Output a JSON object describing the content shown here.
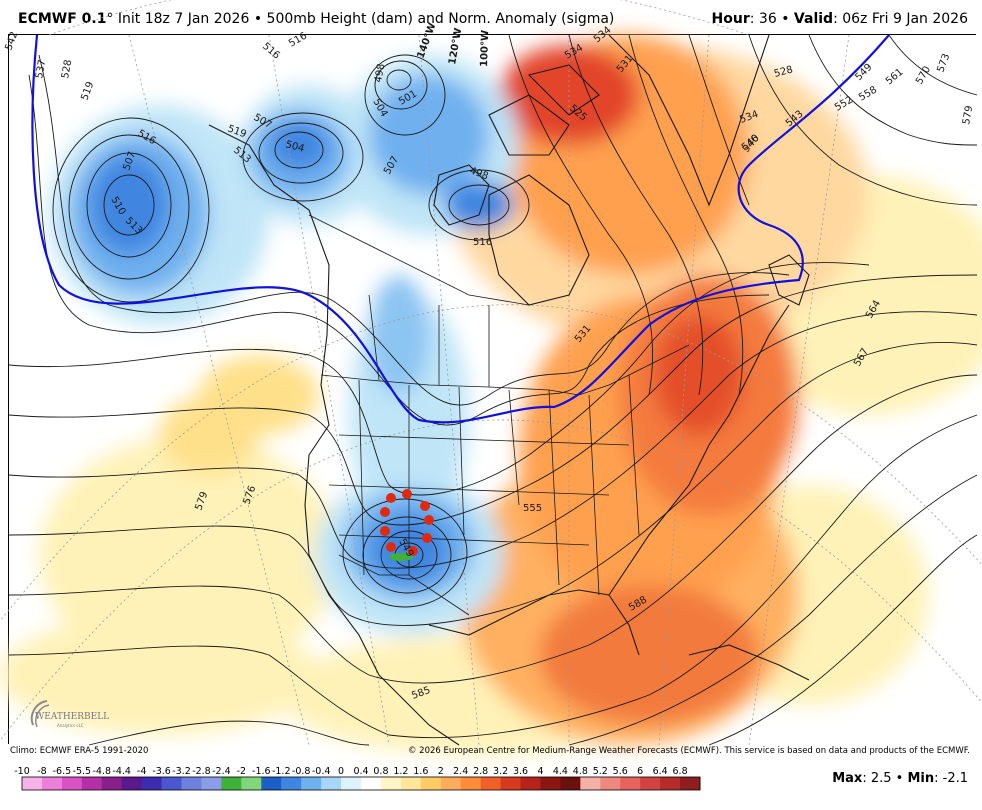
{
  "header": {
    "model": "ECMWF 0.1",
    "degree": "°",
    "init": "Init 18z 7 Jan 2026",
    "sep": "•",
    "field": "500mb Height (dam) and Norm. Anomaly (sigma)",
    "hour_label": "Hour",
    "hour_value": ": 36",
    "valid_label": "Valid",
    "valid_value": ": 06z Fri 9 Jan 2026"
  },
  "footer": {
    "climo": "Climo: ECMWF ERA-5 1991-2020",
    "copyright": "© 2026 European Centre for Medium-Range Weather Forecasts (ECMWF). This service is based on data and products of the ECMWF.",
    "max_label": "Max",
    "max_value": ": 2.5",
    "min_label": "Min",
    "min_value": ": -2.1",
    "sep": "•"
  },
  "logo": {
    "text": "WEATHERBELL",
    "sub": "Analytics LLC"
  },
  "colorbar": {
    "ticks": [
      "-10",
      "-8",
      "-6.5",
      "-5.5",
      "-4.8",
      "-4.4",
      "-4",
      "-3.6",
      "-3.2",
      "-2.8",
      "-2.4",
      "-2",
      "-1.6",
      "-1.2",
      "-0.8",
      "-0.4",
      "0",
      "0.4",
      "0.8",
      "1.2",
      "1.6",
      "2",
      "2.4",
      "2.8",
      "3.2",
      "3.6",
      "4",
      "4.4",
      "4.8",
      "5.2",
      "5.6",
      "6",
      "6.4",
      "6.8"
    ],
    "colors": [
      "#f7b3e8",
      "#ee7fd8",
      "#d951c4",
      "#b52fa6",
      "#8a1e8a",
      "#5a1a8c",
      "#3b2cb0",
      "#4b57cf",
      "#6f80df",
      "#8a9de6",
      "#3fb03a",
      "#7fd77a",
      "#1c5fc8",
      "#3f86e0",
      "#6fb0ef",
      "#a8d6f7",
      "#dff2fb",
      "#ffffff",
      "#fff6c8",
      "#ffe699",
      "#ffcc66",
      "#ffad5a",
      "#ff8c3a",
      "#f2602a",
      "#d63a1f",
      "#b5231a",
      "#8c1612",
      "#6b100e",
      "#f5b0a8",
      "#ef8880",
      "#e4635c",
      "#d24242",
      "#b52a2a",
      "#8f1e1e"
    ]
  },
  "contour_labels": [
    {
      "t": "542"
    },
    {
      "t": "537"
    },
    {
      "t": "528"
    },
    {
      "t": "519"
    },
    {
      "t": "516"
    },
    {
      "t": "507"
    },
    {
      "t": "510"
    },
    {
      "t": "513"
    },
    {
      "t": "516"
    },
    {
      "t": "519"
    },
    {
      "t": "507"
    },
    {
      "t": "504"
    },
    {
      "t": "513"
    },
    {
      "t": "516"
    },
    {
      "t": "498"
    },
    {
      "t": "501"
    },
    {
      "t": "504"
    },
    {
      "t": "507"
    },
    {
      "t": "498"
    },
    {
      "t": "516"
    },
    {
      "t": "534"
    },
    {
      "t": "531"
    },
    {
      "t": "525"
    },
    {
      "t": "528"
    },
    {
      "t": "534"
    },
    {
      "t": "543"
    },
    {
      "t": "546"
    },
    {
      "t": "549"
    },
    {
      "t": "552"
    },
    {
      "t": "558"
    },
    {
      "t": "561"
    },
    {
      "t": "570"
    },
    {
      "t": "573"
    },
    {
      "t": "579"
    },
    {
      "t": "564"
    },
    {
      "t": "567"
    },
    {
      "t": "531"
    },
    {
      "t": "540"
    },
    {
      "t": "549"
    },
    {
      "t": "555"
    },
    {
      "t": "579"
    },
    {
      "t": "576"
    },
    {
      "t": "588"
    },
    {
      "t": "585"
    }
  ],
  "meridian_labels": [
    "140°W",
    "120°W",
    "100°W"
  ],
  "colors": {
    "contour": "#1a1a1a",
    "highlight_contour": "#1010e0",
    "negative_anomaly": "#3f86e0",
    "positive_anomaly": "#f2602a",
    "station_dots": "#e02a10",
    "background": "#ffffff"
  }
}
